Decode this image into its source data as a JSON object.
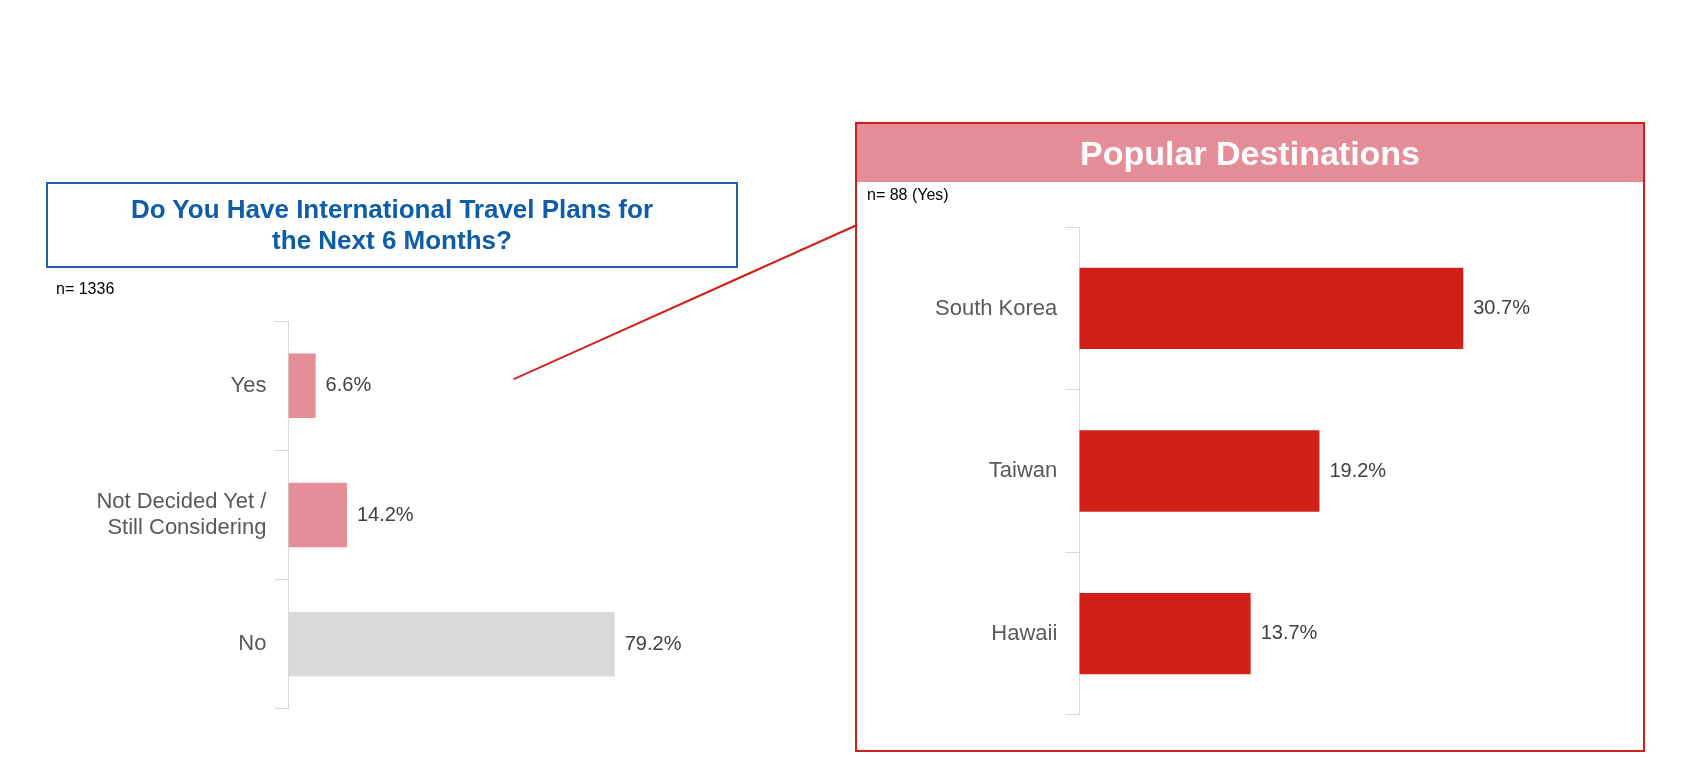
{
  "chart_data": [
    {
      "type": "bar",
      "orientation": "horizontal",
      "title": "Do You Have International Travel Plans for the Next 6 Months?",
      "annotations": [
        "n= 1336"
      ],
      "categories": [
        "Yes",
        "Not Decided Yet / Still Considering",
        "No"
      ],
      "values": [
        6.6,
        14.2,
        79.2
      ],
      "colors": [
        "#e68d9a",
        "#e68d9a",
        "#d9d9d9"
      ],
      "value_labels": [
        "6.6%",
        "14.2%",
        "79.2%"
      ],
      "tick_labels": "y"
    },
    {
      "type": "bar",
      "orientation": "horizontal",
      "title": "Popular Destinations",
      "annotations": [
        "n= 88  (Yes)"
      ],
      "categories": [
        "South Korea",
        "Taiwan",
        "Hawaii"
      ],
      "values": [
        30.7,
        19.2,
        13.7
      ],
      "colors": [
        "#d21f17",
        "#d21f17",
        "#d21f17"
      ],
      "value_labels": [
        "30.7%",
        "19.2%",
        "13.7%"
      ],
      "tick_labels": "y"
    }
  ]
}
